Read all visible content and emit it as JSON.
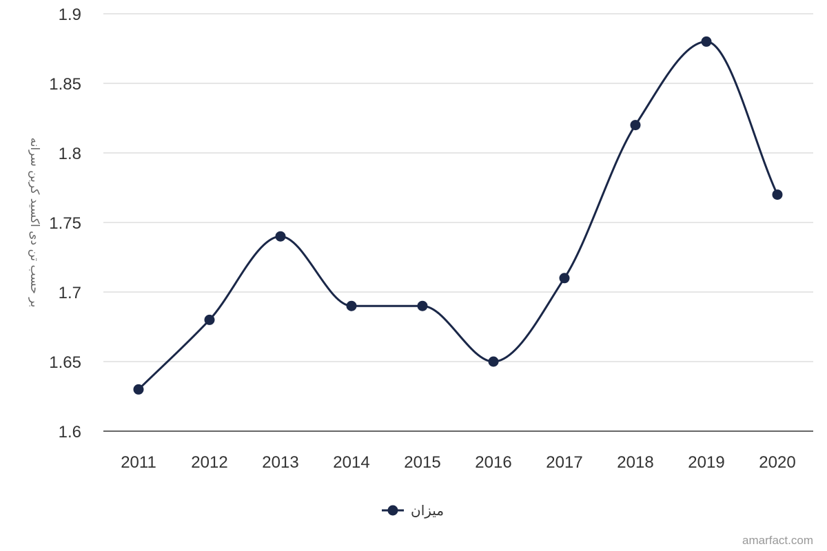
{
  "chart_data": {
    "type": "line",
    "smooth": true,
    "categories": [
      "2011",
      "2012",
      "2013",
      "2014",
      "2015",
      "2016",
      "2017",
      "2018",
      "2019",
      "2020"
    ],
    "series": [
      {
        "name": "میزان",
        "values": [
          1.63,
          1.68,
          1.74,
          1.69,
          1.69,
          1.65,
          1.71,
          1.82,
          1.88,
          1.77
        ],
        "color": "#1a2748"
      }
    ],
    "ylabel": "بر حسب تن دی اکسید کربن سرانه",
    "ylim": [
      1.6,
      1.9
    ],
    "yticks": [
      "1.6",
      "1.65",
      "1.7",
      "1.75",
      "1.8",
      "1.85",
      "1.9"
    ],
    "grid": true,
    "legend_position": "bottom"
  },
  "watermark": "amarfact.com",
  "colors": {
    "series": "#1a2748",
    "grid": "#dddddd",
    "axis": "#333333"
  }
}
